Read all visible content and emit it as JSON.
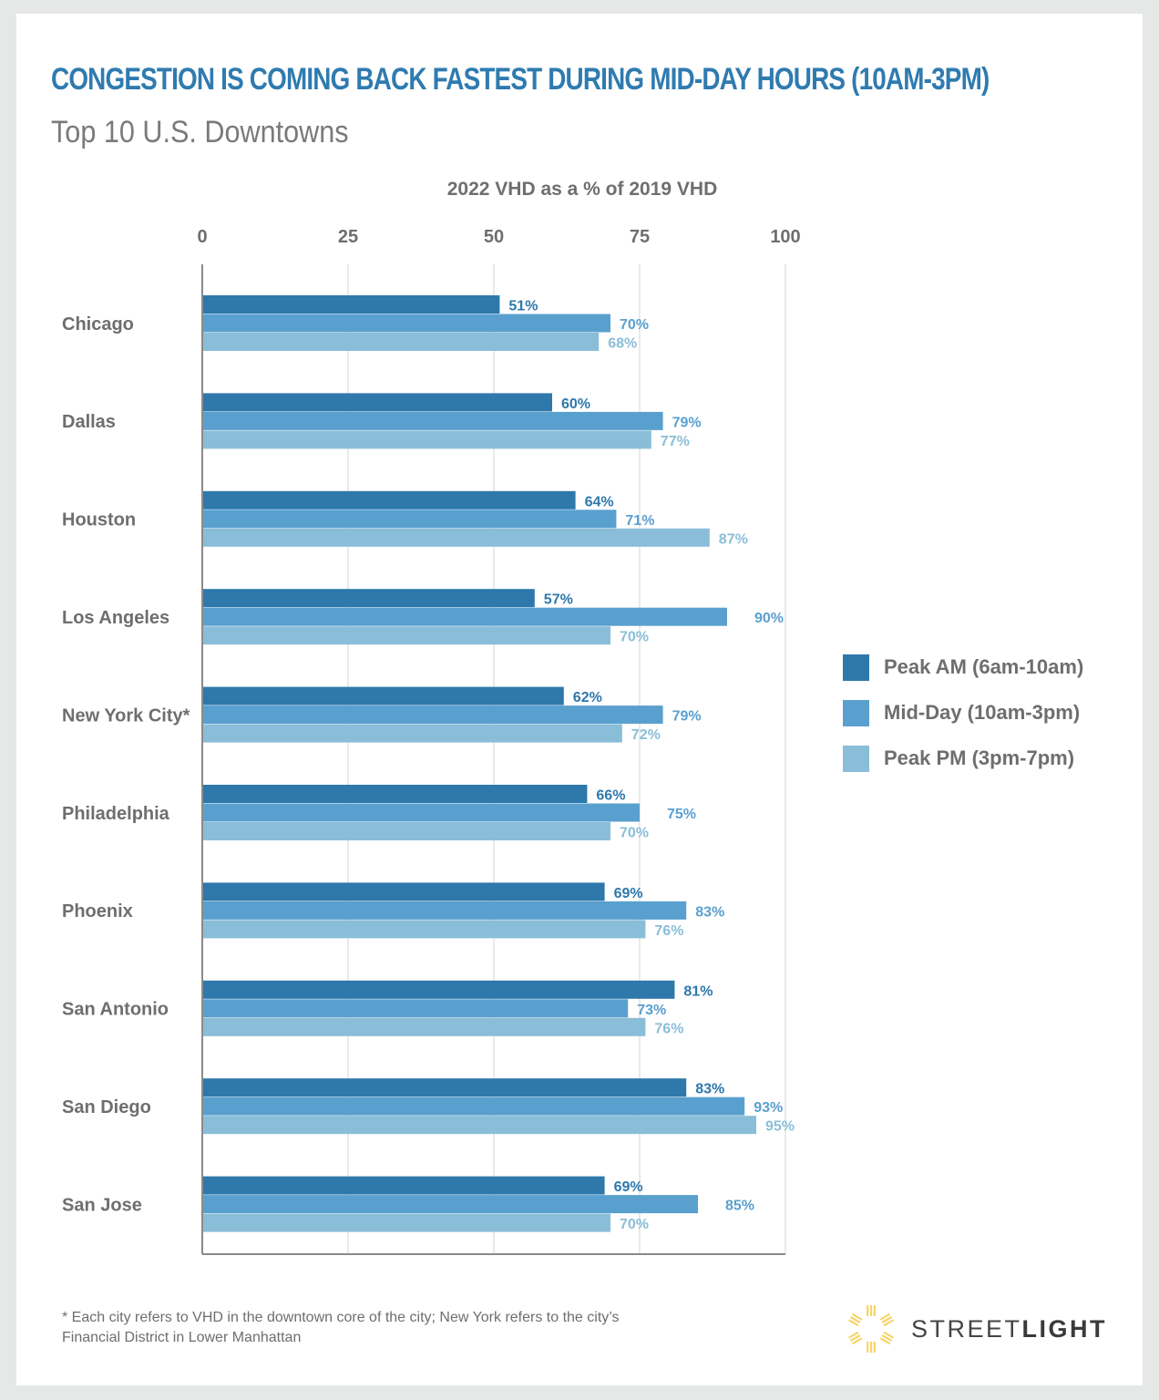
{
  "header": {
    "title": "CONGESTION IS COMING BACK FASTEST DURING MID-DAY HOURS (10AM-3PM)",
    "subtitle": "Top 10 U.S. Downtowns"
  },
  "footnote": {
    "line1": "* Each city refers to VHD in the downtown core of the city; New York refers to the city’s",
    "line2": "Financial District in Lower Manhattan"
  },
  "brand": {
    "name_light": "STREET",
    "name_bold": "LIGHT",
    "icon": "sun-rays-icon",
    "icon_color": "#f6d56a"
  },
  "colors": {
    "title": "#2f7bb0",
    "peak_am": "#2e78ab",
    "mid_day": "#5aa0cf",
    "peak_pm": "#8abed8",
    "axis_text": "#6e6e6e",
    "grid": "#e4e4e4",
    "axis_line": "#8a8a8a"
  },
  "chart_data": {
    "type": "bar",
    "orientation": "horizontal",
    "title": "2022 VHD as a % of 2019 VHD",
    "xlabel": "2022 VHD as a % of 2019 VHD",
    "ylabel": "",
    "xlim": [
      0,
      100
    ],
    "xticks": [
      0,
      25,
      50,
      75,
      100
    ],
    "grid": true,
    "legend_position": "right",
    "categories": [
      "Chicago",
      "Dallas",
      "Houston",
      "Los Angeles",
      "New York City*",
      "Philadelphia",
      "Phoenix",
      "San Antonio",
      "San Diego",
      "San Jose"
    ],
    "series": [
      {
        "name": "Peak AM (6am-10am)",
        "color": "#2e78ab",
        "values": [
          51,
          60,
          64,
          57,
          62,
          66,
          69,
          81,
          83,
          69
        ]
      },
      {
        "name": "Mid-Day (10am-3pm)",
        "color": "#5aa0cf",
        "values": [
          70,
          79,
          71,
          90,
          79,
          75,
          83,
          73,
          93,
          85
        ]
      },
      {
        "name": "Peak PM (3pm-7pm)",
        "color": "#8abed8",
        "values": [
          68,
          77,
          87,
          70,
          72,
          70,
          76,
          76,
          95,
          70
        ]
      }
    ],
    "value_label_suffix": "%"
  }
}
